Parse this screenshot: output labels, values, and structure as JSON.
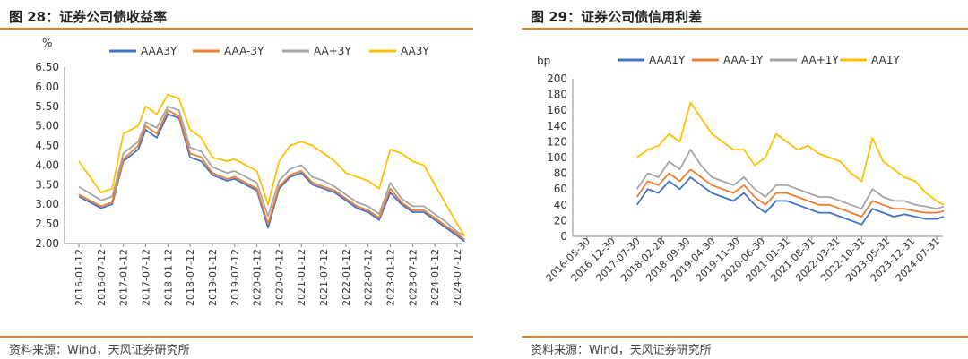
{
  "left": {
    "title": "图 28：证券公司债收益率",
    "source": "资料来源：Wind，天风证券研究所"
  },
  "right": {
    "title": "图 29：证券公司债信用利差",
    "source": "资料来源：Wind，天风证券研究所"
  },
  "colors": {
    "AAA": "#4472C4",
    "AAAminus": "#ED7D31",
    "AAplus": "#A5A5A5",
    "AA": "#FFC000",
    "rule": "#E67E22"
  },
  "chart_data": [
    {
      "type": "line",
      "title": "",
      "ylabel": "%",
      "ylim": [
        2.0,
        6.5
      ],
      "y_ticks": [
        "6.50",
        "6.00",
        "5.50",
        "5.00",
        "4.50",
        "4.00",
        "3.50",
        "3.00",
        "2.50",
        "2.00"
      ],
      "x_tick_labels": [
        "2016-01-12",
        "2016-07-12",
        "2017-01-12",
        "2017-07-12",
        "2018-01-12",
        "2018-07-12",
        "2019-01-12",
        "2019-07-12",
        "2020-01-12",
        "2020-07-12",
        "2021-01-12",
        "2021-07-12",
        "2022-01-12",
        "2022-07-12",
        "2023-01-12",
        "2023-07-12",
        "2024-01-12",
        "2024-07-12"
      ],
      "x": [
        "2016-01",
        "2016-07",
        "2016-10",
        "2017-01",
        "2017-05",
        "2017-07",
        "2017-10",
        "2018-01",
        "2018-04",
        "2018-07",
        "2018-10",
        "2019-01",
        "2019-05",
        "2019-07",
        "2019-10",
        "2020-01",
        "2020-04",
        "2020-07",
        "2020-10",
        "2021-01",
        "2021-04",
        "2021-07",
        "2021-10",
        "2022-01",
        "2022-04",
        "2022-07",
        "2022-10",
        "2023-01",
        "2023-04",
        "2023-07",
        "2023-10",
        "2024-01",
        "2024-04",
        "2024-07",
        "2024-09"
      ],
      "series": [
        {
          "name": "AAA3Y",
          "color": "#4472C4",
          "values": [
            3.2,
            2.9,
            3.0,
            4.1,
            4.4,
            4.9,
            4.7,
            5.3,
            5.2,
            4.2,
            4.1,
            3.75,
            3.6,
            3.65,
            3.5,
            3.35,
            2.4,
            3.4,
            3.7,
            3.8,
            3.5,
            3.4,
            3.3,
            3.1,
            2.9,
            2.8,
            2.6,
            3.3,
            3.0,
            2.8,
            2.8,
            2.6,
            2.4,
            2.2,
            2.05
          ]
        },
        {
          "name": "AAA-3Y",
          "color": "#ED7D31",
          "values": [
            3.25,
            2.95,
            3.05,
            4.15,
            4.5,
            5.0,
            4.8,
            5.4,
            5.25,
            4.3,
            4.2,
            3.8,
            3.65,
            3.7,
            3.55,
            3.4,
            2.5,
            3.45,
            3.75,
            3.85,
            3.55,
            3.45,
            3.35,
            3.15,
            2.95,
            2.85,
            2.65,
            3.4,
            3.05,
            2.85,
            2.85,
            2.65,
            2.45,
            2.25,
            2.1
          ]
        },
        {
          "name": "AA+3Y",
          "color": "#A5A5A5",
          "values": [
            3.45,
            3.1,
            3.2,
            4.3,
            4.6,
            5.1,
            4.95,
            5.5,
            5.4,
            4.45,
            4.35,
            3.95,
            3.8,
            3.85,
            3.7,
            3.55,
            2.7,
            3.6,
            3.9,
            4.0,
            3.7,
            3.6,
            3.45,
            3.25,
            3.05,
            2.95,
            2.75,
            3.55,
            3.15,
            2.95,
            2.95,
            2.75,
            2.55,
            2.3,
            2.2
          ]
        },
        {
          "name": "AA3Y",
          "color": "#FFC000",
          "values": [
            4.1,
            3.3,
            3.4,
            4.8,
            5.0,
            5.5,
            5.3,
            5.8,
            5.7,
            4.9,
            4.7,
            4.2,
            4.1,
            4.15,
            4.0,
            3.85,
            3.0,
            4.1,
            4.5,
            4.6,
            4.5,
            4.3,
            4.1,
            3.8,
            3.7,
            3.6,
            3.4,
            4.4,
            4.3,
            4.1,
            4.0,
            3.5,
            3.0,
            2.5,
            2.2
          ]
        }
      ],
      "legend_position": "top"
    },
    {
      "type": "line",
      "title": "",
      "ylabel": "bp",
      "ylim": [
        0,
        200
      ],
      "y_ticks": [
        "200",
        "180",
        "160",
        "140",
        "120",
        "100",
        "80",
        "60",
        "40",
        "20",
        "0"
      ],
      "x_tick_labels": [
        "2016-05-30",
        "2016-12-30",
        "2017-07-30",
        "2018-02-28",
        "2018-09-30",
        "2019-04-30",
        "2019-11-30",
        "2020-06-30",
        "2021-01-31",
        "2021-08-31",
        "2022-03-31",
        "2022-10-31",
        "2023-05-31",
        "2023-12-31",
        "2024-07-31"
      ],
      "x": [
        "2017-07",
        "2017-10",
        "2018-01",
        "2018-04",
        "2018-07",
        "2018-10",
        "2019-01",
        "2019-04",
        "2019-07",
        "2019-10",
        "2020-01",
        "2020-04",
        "2020-07",
        "2020-10",
        "2021-01",
        "2021-04",
        "2021-07",
        "2021-10",
        "2022-01",
        "2022-04",
        "2022-07",
        "2022-10",
        "2023-01",
        "2023-04",
        "2023-07",
        "2023-10",
        "2024-01",
        "2024-04",
        "2024-07",
        "2024-09"
      ],
      "series": [
        {
          "name": "AAA1Y",
          "color": "#4472C4",
          "values": [
            40,
            60,
            55,
            70,
            60,
            75,
            65,
            55,
            50,
            45,
            55,
            40,
            30,
            45,
            45,
            40,
            35,
            30,
            30,
            25,
            20,
            15,
            35,
            30,
            25,
            28,
            25,
            22,
            22,
            25
          ]
        },
        {
          "name": "AAA-1Y",
          "color": "#ED7D31",
          "values": [
            50,
            70,
            65,
            80,
            70,
            85,
            75,
            65,
            60,
            55,
            65,
            50,
            40,
            55,
            55,
            50,
            45,
            40,
            40,
            35,
            30,
            25,
            45,
            40,
            35,
            35,
            32,
            30,
            30,
            32
          ]
        },
        {
          "name": "AA+1Y",
          "color": "#A5A5A5",
          "values": [
            60,
            80,
            75,
            95,
            85,
            110,
            90,
            75,
            70,
            65,
            75,
            60,
            50,
            65,
            65,
            60,
            55,
            50,
            50,
            45,
            40,
            35,
            60,
            50,
            45,
            45,
            40,
            38,
            35,
            38
          ]
        },
        {
          "name": "AA1Y",
          "color": "#FFC000",
          "values": [
            100,
            110,
            115,
            130,
            120,
            170,
            150,
            130,
            120,
            110,
            110,
            90,
            100,
            130,
            120,
            110,
            115,
            105,
            100,
            95,
            80,
            70,
            125,
            95,
            85,
            75,
            70,
            55,
            45,
            40
          ]
        }
      ],
      "legend_position": "top"
    }
  ]
}
